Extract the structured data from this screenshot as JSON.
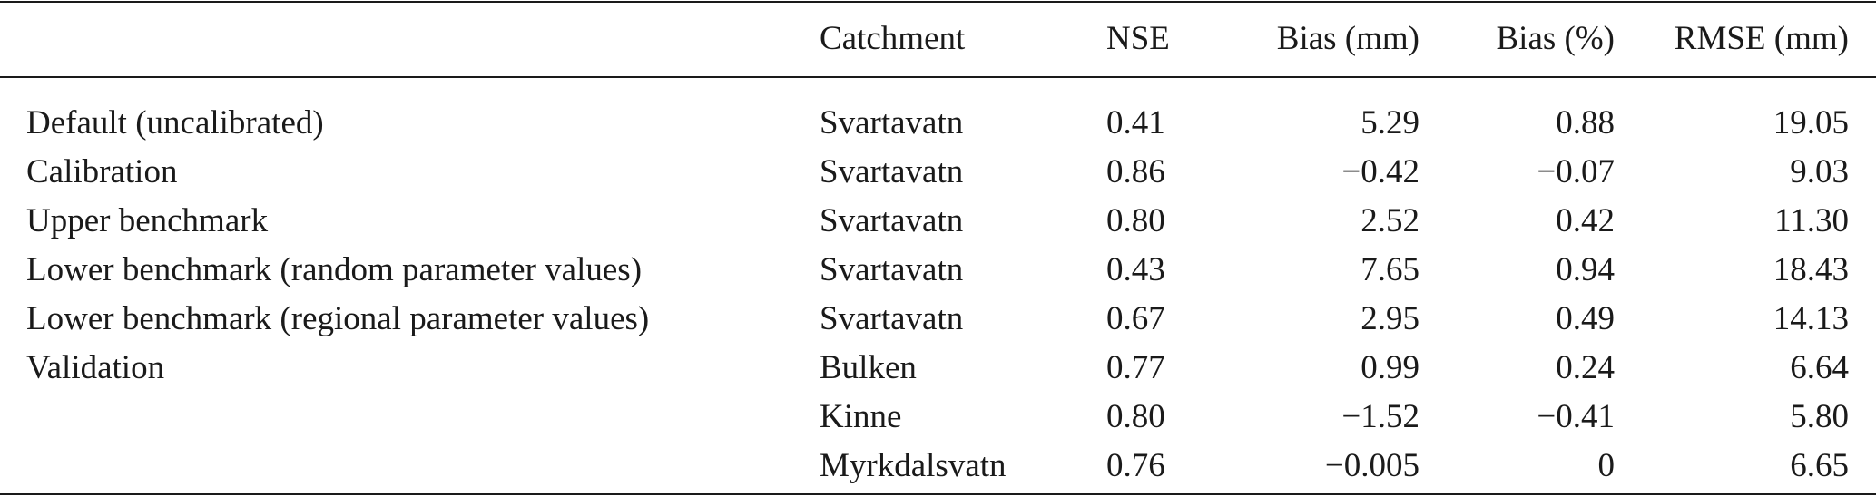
{
  "table": {
    "headers": {
      "method": "",
      "catchment": "Catchment",
      "nse": "NSE",
      "bias_mm": "Bias (mm)",
      "bias_pct": "Bias (%)",
      "rmse": "RMSE (mm)"
    },
    "rows": [
      {
        "method": "Default (uncalibrated)",
        "catchment": "Svartavatn",
        "nse": "0.41",
        "bias_mm": "5.29",
        "bias_pct": "0.88",
        "rmse": "19.05"
      },
      {
        "method": "Calibration",
        "catchment": "Svartavatn",
        "nse": "0.86",
        "bias_mm": "−0.42",
        "bias_pct": "−0.07",
        "rmse": "9.03"
      },
      {
        "method": "Upper benchmark",
        "catchment": "Svartavatn",
        "nse": "0.80",
        "bias_mm": "2.52",
        "bias_pct": "0.42",
        "rmse": "11.30"
      },
      {
        "method": "Lower benchmark (random parameter values)",
        "catchment": "Svartavatn",
        "nse": "0.43",
        "bias_mm": "7.65",
        "bias_pct": "0.94",
        "rmse": "18.43"
      },
      {
        "method": "Lower benchmark (regional parameter values)",
        "catchment": "Svartavatn",
        "nse": "0.67",
        "bias_mm": "2.95",
        "bias_pct": "0.49",
        "rmse": "14.13"
      },
      {
        "method": "Validation",
        "catchment": "Bulken",
        "nse": "0.77",
        "bias_mm": "0.99",
        "bias_pct": "0.24",
        "rmse": "6.64"
      },
      {
        "method": "",
        "catchment": "Kinne",
        "nse": "0.80",
        "bias_mm": "−1.52",
        "bias_pct": "−0.41",
        "rmse": "5.80"
      },
      {
        "method": "",
        "catchment": "Myrkdalsvatn",
        "nse": "0.76",
        "bias_mm": "−0.005",
        "bias_pct": "0",
        "rmse": "6.65"
      }
    ]
  }
}
